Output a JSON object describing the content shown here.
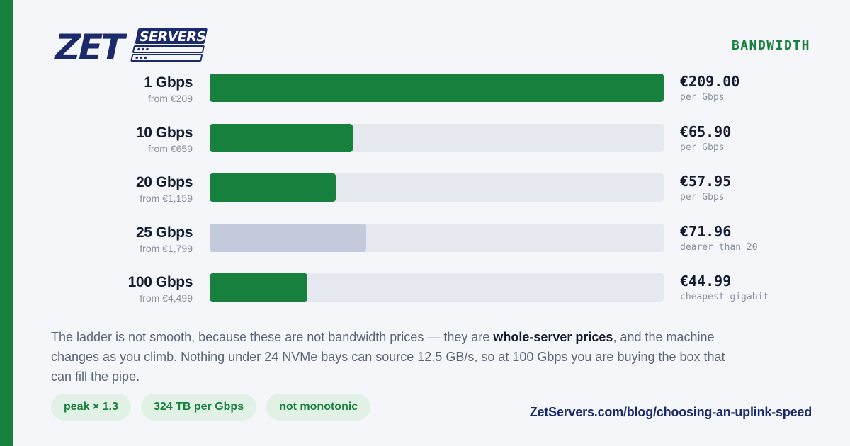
{
  "brand": {
    "logo_text": "ZET",
    "logo_subtext": "SERVERS",
    "navy": "#1b2a6b",
    "green": "#17803d"
  },
  "section_label": "BANDWIDTH",
  "chart_data": {
    "type": "bar",
    "orientation": "horizontal",
    "categories": [
      "1 Gbps",
      "10 Gbps",
      "20 Gbps",
      "25 Gbps",
      "100 Gbps"
    ],
    "subtitles": [
      "from €209",
      "from €659",
      "from €1,159",
      "from €1,799",
      "from €4,499"
    ],
    "values": [
      209.0,
      65.9,
      57.95,
      71.96,
      44.99
    ],
    "value_labels": [
      "€209.00",
      "€65.90",
      "€57.95",
      "€71.96",
      "€44.99"
    ],
    "notes": [
      "per Gbps",
      "per Gbps",
      "per Gbps",
      "dearer than 20",
      "cheapest gigabit"
    ],
    "highlight": [
      true,
      true,
      true,
      false,
      true
    ],
    "xlim": [
      0,
      209
    ],
    "grid": false,
    "legend": "none",
    "colors": {
      "bar": "#17803d",
      "bar_muted": "#c4c9dc",
      "track": "#e6e8f0"
    }
  },
  "paragraph": {
    "before": "The ladder is not smooth, because these are not bandwidth prices — they are ",
    "bold": "whole-server prices",
    "after": ", and the machine changes as you climb. Nothing under 24 NVMe bays can source 12.5 GB/s, so at 100 Gbps you are buying the box that can fill the pipe."
  },
  "tags": [
    "peak × 1.3",
    "324 TB per Gbps",
    "not monotonic"
  ],
  "url": "ZetServers.com/blog/choosing-an-uplink-speed"
}
